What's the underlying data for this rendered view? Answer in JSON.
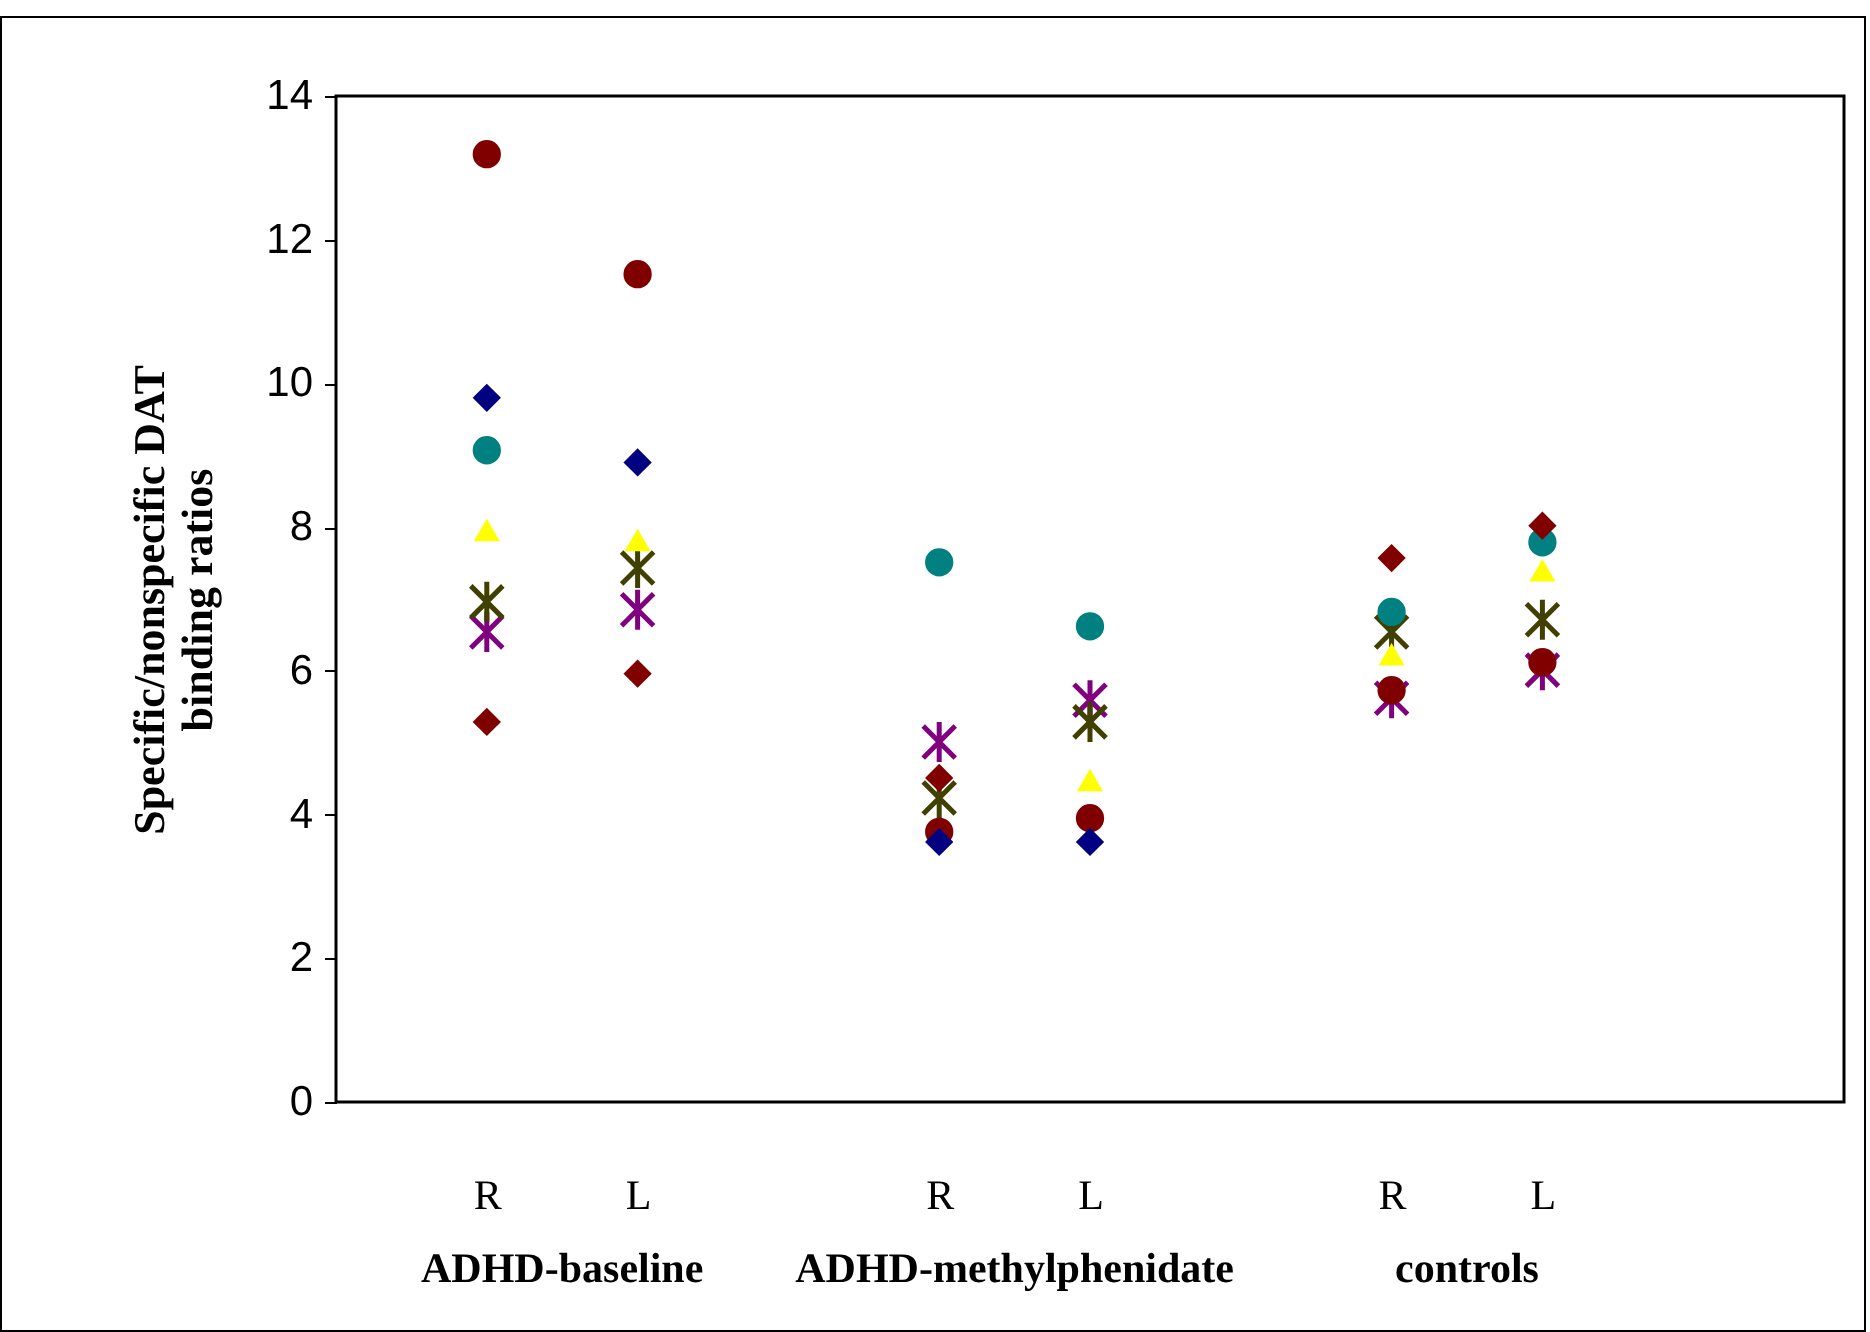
{
  "chart_data": {
    "type": "scatter",
    "ylabel": "Specific/nonspecific DAT\nbinding ratios",
    "categories": [
      null,
      "R",
      "L",
      null,
      "R",
      "L",
      null,
      "R",
      "L",
      null,
      null
    ],
    "ylim": [
      0,
      14
    ],
    "yticks": [
      0,
      2,
      4,
      6,
      8,
      10,
      12,
      14
    ],
    "grid": false,
    "series": [
      {
        "color": "#800080",
        "marker": "cross",
        "values": [
          null,
          6.54,
          6.85,
          null,
          5.01,
          5.59,
          null,
          5.62,
          6.01,
          null,
          null
        ]
      },
      {
        "color": "#404000",
        "marker": "cross",
        "values": [
          null,
          6.96,
          7.43,
          null,
          4.23,
          5.29,
          null,
          6.54,
          6.71,
          null,
          null
        ]
      },
      {
        "color": "#ffff00",
        "marker": "triangle",
        "values": [
          null,
          7.96,
          7.82,
          null,
          null,
          4.48,
          null,
          6.23,
          7.4,
          null,
          null
        ]
      },
      {
        "color": "#008080",
        "marker": "circle",
        "values": [
          null,
          9.07,
          null,
          null,
          7.51,
          6.62,
          null,
          6.82,
          7.79,
          null,
          null
        ]
      },
      {
        "color": "#800000",
        "marker": "circle",
        "values": [
          null,
          13.19,
          11.52,
          null,
          3.76,
          3.95,
          null,
          5.73,
          6.12,
          null,
          null
        ]
      },
      {
        "color": "#800000",
        "marker": "diamond",
        "values": [
          null,
          5.29,
          5.96,
          null,
          4.51,
          null,
          null,
          7.57,
          8.02,
          null,
          null
        ]
      },
      {
        "color": "#000080",
        "marker": "diamond",
        "values": [
          null,
          9.8,
          8.9,
          null,
          3.62,
          3.62,
          null,
          null,
          null,
          null,
          null
        ]
      }
    ],
    "annotations": [
      "ADHD-baseline",
      "ADHD-methylphenidate",
      "controls"
    ]
  }
}
